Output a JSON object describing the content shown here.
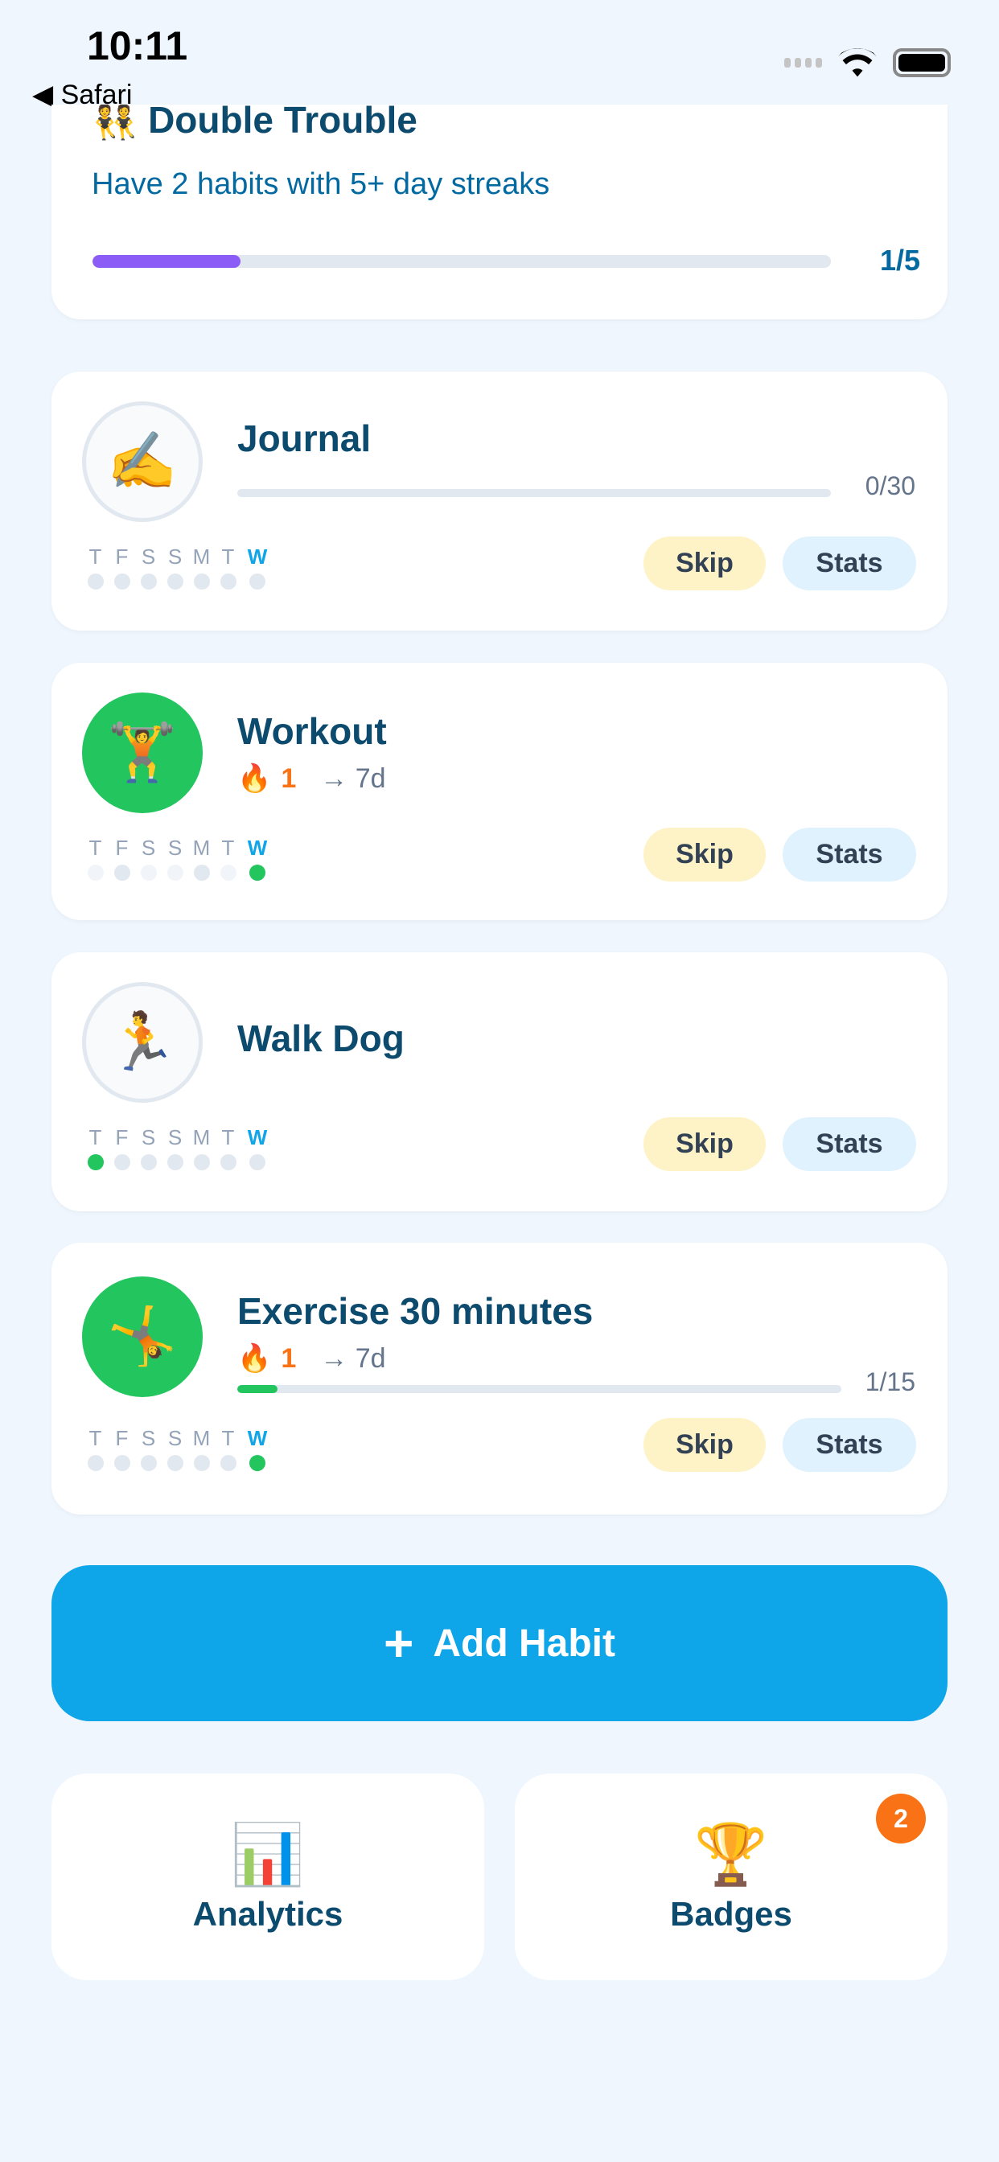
{
  "status_bar": {
    "time": "10:11",
    "back_label": "Safari"
  },
  "challenge": {
    "emoji": "👯",
    "title": "Double Trouble",
    "subtitle": "Have 2 habits with 5+ day streaks",
    "progress": 0.2,
    "count": "1/5",
    "color": "#8b5cf6"
  },
  "day_labels": [
    "T",
    "F",
    "S",
    "S",
    "M",
    "T",
    "W"
  ],
  "habits": [
    {
      "emoji": "✍️",
      "title": "Journal",
      "active": false,
      "progress": 0,
      "count": "0/30",
      "dots": [
        "missed",
        "missed",
        "missed",
        "missed",
        "missed",
        "missed",
        "missed"
      ],
      "skip": "Skip",
      "stats": "Stats"
    },
    {
      "emoji": "🏋️",
      "title": "Workout",
      "active": true,
      "streak_icon": "🔥",
      "streak": "1",
      "goal": "→ 7d",
      "dots": [
        "light",
        "missed",
        "light",
        "light",
        "missed",
        "light",
        "done"
      ],
      "skip": "Skip",
      "stats": "Stats"
    },
    {
      "emoji": "🏃",
      "title": "Walk Dog",
      "active": false,
      "dots": [
        "done",
        "missed",
        "missed",
        "missed",
        "missed",
        "missed",
        "missed"
      ],
      "skip": "Skip",
      "stats": "Stats"
    },
    {
      "emoji": "🤸",
      "title": "Exercise 30 minutes",
      "active": true,
      "streak_icon": "🔥",
      "streak": "1",
      "goal": "→ 7d",
      "progress": 0.0667,
      "count": "1/15",
      "dots": [
        "missed",
        "missed",
        "missed",
        "missed",
        "missed",
        "missed",
        "done"
      ],
      "skip": "Skip",
      "stats": "Stats"
    }
  ],
  "add_habit": {
    "icon": "+",
    "label": "Add Habit"
  },
  "tiles": {
    "analytics": {
      "emoji": "📊",
      "label": "Analytics"
    },
    "badges": {
      "emoji": "🏆",
      "label": "Badges",
      "count": "2"
    }
  },
  "colors": {
    "accent": "#0ea5e9",
    "done": "#22c55e",
    "streak": "#f97316"
  }
}
